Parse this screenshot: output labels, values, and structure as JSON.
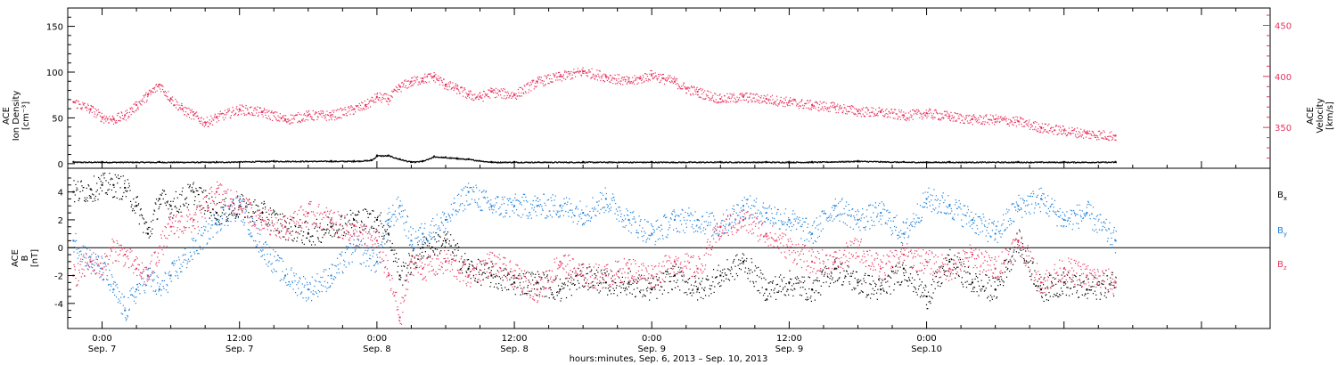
{
  "chart_data": [
    {
      "type": "scatter",
      "panel": "top",
      "ylabel": [
        "ACE",
        "Ion Density"
      ],
      "ylabel_unit": "[cm⁻³]",
      "ylim": [
        -5,
        170
      ],
      "yticks": [
        0,
        50,
        100,
        150
      ],
      "ylabel_right": [
        "ACE",
        "Velocity"
      ],
      "ylabel_right_unit": "[km/s]",
      "ylim_right": [
        310,
        467
      ],
      "yticks_right": [
        350,
        400,
        450
      ],
      "grid": false,
      "series": [
        {
          "axis": "left",
          "color": "#000000",
          "x_hours": [
            -2.5,
            0,
            5,
            10,
            15,
            20,
            22,
            23.5,
            24,
            25,
            26,
            27,
            28,
            29,
            30,
            31,
            32,
            34,
            36,
            42,
            48,
            54,
            58,
            60,
            62,
            66,
            70,
            74,
            80,
            84,
            88.5
          ],
          "values": [
            2,
            2,
            2,
            2,
            3,
            3,
            3,
            4,
            9,
            9,
            5,
            2,
            3,
            8,
            7,
            6,
            5,
            2,
            2,
            2,
            2,
            2,
            2,
            2,
            2,
            3,
            2,
            2,
            2,
            2,
            2
          ]
        },
        {
          "axis": "right",
          "color": "#e8335e",
          "x_hours": [
            -2.5,
            -1,
            0,
            1,
            2,
            3,
            4,
            5,
            6,
            7,
            8,
            9,
            10,
            12,
            14,
            16,
            18,
            20,
            22,
            23,
            24,
            25,
            26,
            27,
            28,
            29,
            30,
            31,
            32,
            33,
            34,
            36,
            38,
            40,
            42,
            44,
            46,
            47,
            48,
            49,
            50,
            51,
            52,
            54,
            56,
            58,
            60,
            62,
            64,
            66,
            68,
            70,
            72,
            74,
            76,
            78,
            80,
            82,
            84,
            86,
            88.5
          ],
          "values": [
            375,
            368,
            360,
            358,
            362,
            372,
            382,
            392,
            378,
            368,
            362,
            355,
            360,
            368,
            365,
            358,
            362,
            362,
            368,
            372,
            380,
            378,
            390,
            395,
            398,
            400,
            392,
            388,
            382,
            380,
            385,
            382,
            395,
            400,
            405,
            400,
            395,
            398,
            402,
            398,
            395,
            388,
            385,
            378,
            380,
            378,
            375,
            372,
            370,
            366,
            365,
            362,
            364,
            361,
            358,
            358,
            356,
            350,
            347,
            344,
            342
          ]
        }
      ]
    },
    {
      "type": "scatter",
      "panel": "bottom",
      "ylabel": [
        "ACE",
        "B"
      ],
      "ylabel_unit": "[nT]",
      "ylim": [
        -5.8,
        5.7
      ],
      "yticks": [
        -4,
        -2,
        0,
        2,
        4
      ],
      "zero_line": true,
      "grid": false,
      "legend_placement": "right",
      "series": [
        {
          "name": "Bx",
          "label_main": "B",
          "label_sub": "x",
          "color": "#000000",
          "x_hours": [
            -2.5,
            -1,
            0,
            1,
            2,
            3,
            4,
            5,
            6,
            8,
            10,
            12,
            14,
            16,
            18,
            20,
            22,
            24,
            25,
            26,
            27,
            28,
            30,
            32,
            34,
            36,
            38,
            40,
            42,
            44,
            46,
            48,
            50,
            52,
            54,
            56,
            58,
            60,
            62,
            64,
            66,
            68,
            70,
            72,
            74,
            76,
            78,
            80,
            82,
            84,
            86,
            88.5
          ],
          "values": [
            4.0,
            4.2,
            4.5,
            4.5,
            4.3,
            3.0,
            1.0,
            3.5,
            3.0,
            4.0,
            2.5,
            3.0,
            2.5,
            1.5,
            1.0,
            1.5,
            2.0,
            2.0,
            1.0,
            -2.0,
            -1.0,
            0.0,
            0.5,
            -1.5,
            -2.0,
            -2.5,
            -2.5,
            -3.0,
            -2.0,
            -2.5,
            -2.5,
            -3.0,
            -2.0,
            -3.0,
            -2.0,
            -1.0,
            -3.0,
            -2.5,
            -3.0,
            -1.5,
            -2.5,
            -3.0,
            -1.5,
            -3.5,
            -1.0,
            -2.5,
            -3.0,
            0.5,
            -3.0,
            -2.5,
            -3.0,
            -2.5
          ]
        },
        {
          "name": "By",
          "label_main": "B",
          "label_sub": "y",
          "color": "#1a7fd9",
          "x_hours": [
            -2.5,
            -1,
            0,
            1,
            2,
            3,
            4,
            5,
            6,
            8,
            10,
            12,
            14,
            16,
            18,
            20,
            22,
            24,
            25,
            26,
            27,
            28,
            30,
            32,
            34,
            36,
            38,
            40,
            42,
            44,
            46,
            48,
            50,
            52,
            54,
            56,
            58,
            60,
            62,
            64,
            66,
            68,
            70,
            72,
            74,
            76,
            78,
            80,
            82,
            84,
            86,
            88.5
          ],
          "values": [
            0.5,
            -1.0,
            -1.5,
            -3.0,
            -4.5,
            -3.0,
            -2.0,
            -3.0,
            -2.0,
            0.0,
            2.0,
            3.0,
            0.0,
            -2.0,
            -3.0,
            -2.0,
            0.0,
            -1.0,
            2.0,
            3.0,
            0.5,
            1.0,
            2.0,
            4.0,
            3.0,
            3.0,
            3.0,
            3.0,
            2.5,
            3.5,
            2.0,
            1.0,
            2.0,
            2.0,
            1.5,
            3.0,
            2.5,
            2.0,
            1.0,
            3.0,
            2.0,
            2.5,
            1.0,
            3.5,
            3.0,
            2.0,
            1.0,
            3.0,
            3.5,
            2.0,
            2.5,
            0.5
          ]
        },
        {
          "name": "Bz",
          "label_main": "B",
          "label_sub": "z",
          "color": "#e8335e",
          "x_hours": [
            -2.5,
            -1,
            0,
            1,
            2,
            3,
            4,
            5,
            6,
            8,
            10,
            12,
            14,
            16,
            18,
            20,
            22,
            24,
            25,
            26,
            27,
            28,
            30,
            32,
            34,
            36,
            38,
            40,
            42,
            44,
            46,
            48,
            50,
            52,
            54,
            56,
            58,
            60,
            62,
            64,
            66,
            68,
            70,
            72,
            74,
            76,
            78,
            80,
            82,
            84,
            86,
            88.5
          ],
          "values": [
            -2.0,
            -1.0,
            -1.5,
            0.0,
            -0.5,
            -1.5,
            -2.0,
            0.0,
            1.5,
            2.0,
            4.0,
            3.0,
            2.0,
            1.5,
            2.5,
            2.0,
            1.0,
            0.5,
            -2.0,
            -5.0,
            -1.0,
            -1.5,
            -1.0,
            -2.0,
            -1.0,
            -2.0,
            -3.0,
            -1.0,
            -2.0,
            -2.0,
            -1.5,
            -2.0,
            -1.0,
            -1.5,
            1.5,
            2.0,
            1.0,
            0.0,
            -1.0,
            -1.0,
            0.0,
            -1.5,
            -0.5,
            -1.0,
            -1.5,
            -0.5,
            -1.5,
            0.5,
            -2.5,
            -1.5,
            -2.0,
            -2.5
          ]
        }
      ]
    }
  ],
  "x_axis": {
    "xlim_hours": [
      -3,
      102
    ],
    "ticks": [
      {
        "hour": 0,
        "time": "0:00",
        "date": "Sep. 7"
      },
      {
        "hour": 12,
        "time": "12:00",
        "date": "Sep. 7"
      },
      {
        "hour": 24,
        "time": "0:00",
        "date": "Sep. 8"
      },
      {
        "hour": 36,
        "time": "12:00",
        "date": "Sep. 8"
      },
      {
        "hour": 48,
        "time": "0:00",
        "date": "Sep. 9"
      },
      {
        "hour": 60,
        "time": "12:00",
        "date": "Sep. 9"
      },
      {
        "hour": 72,
        "time": "0:00",
        "date": "Sep.10"
      }
    ],
    "title": "hours:minutes, Sep.  6, 2013 – Sep. 10, 2013"
  }
}
